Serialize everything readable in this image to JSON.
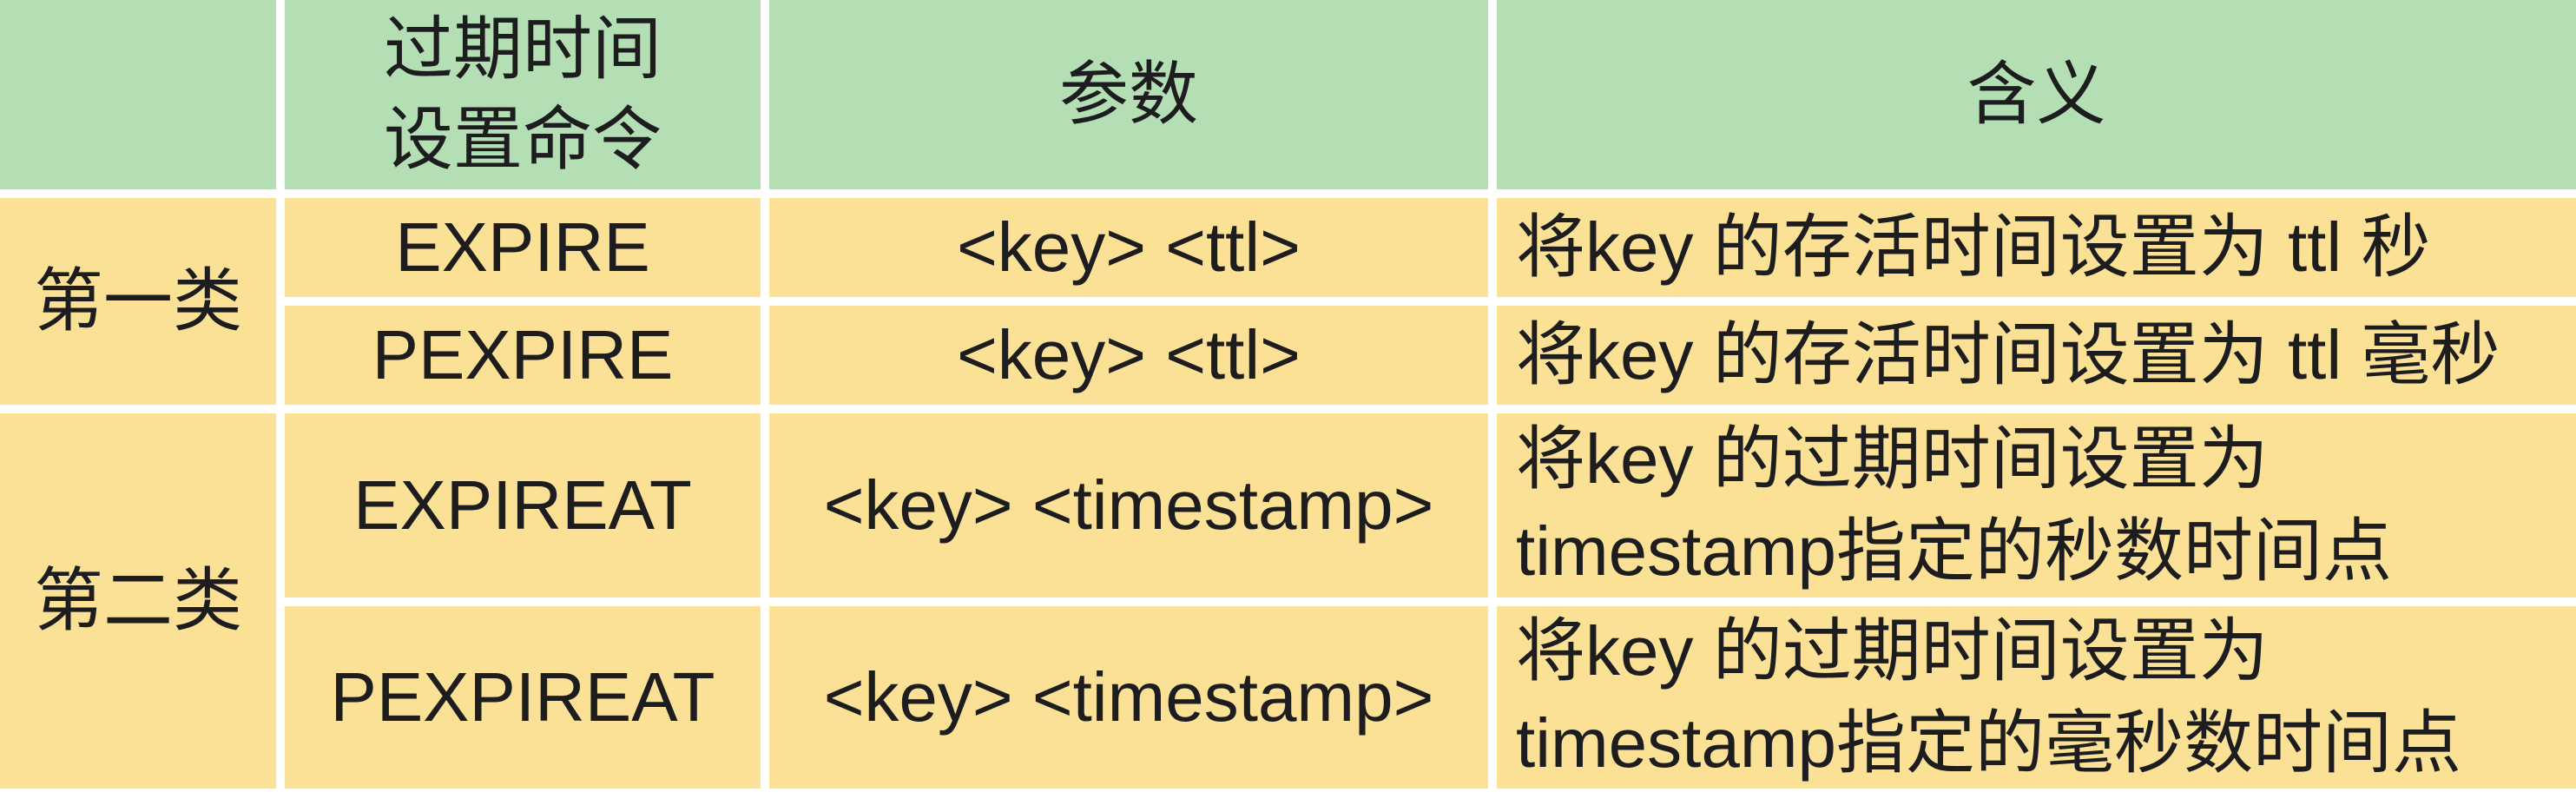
{
  "colors": {
    "header_bg": "#b4deb3",
    "row_bg": "#fae196",
    "divider": "#ffffff",
    "text": "#1d1d1f"
  },
  "header": {
    "category": "",
    "command_line1": "过期时间",
    "command_line2": "设置命令",
    "params": "参数",
    "meaning": "含义"
  },
  "groups": [
    {
      "category": "第一类",
      "rows": [
        {
          "command": "EXPIRE",
          "params": "<key> <ttl>",
          "meaning_lines": [
            "将key 的存活时间设置为 ttl 秒"
          ]
        },
        {
          "command": "PEXPIRE",
          "params": "<key> <ttl>",
          "meaning_lines": [
            "将key 的存活时间设置为 ttl 毫秒"
          ]
        }
      ]
    },
    {
      "category": "第二类",
      "rows": [
        {
          "command": "EXPIREAT",
          "params": "<key> <timestamp>",
          "meaning_lines": [
            "将key 的过期时间设置为",
            "timestamp指定的秒数时间点"
          ]
        },
        {
          "command": "PEXPIREAT",
          "params": "<key> <timestamp>",
          "meaning_lines": [
            "将key 的过期时间设置为",
            "timestamp指定的毫秒数时间点"
          ]
        }
      ]
    }
  ]
}
